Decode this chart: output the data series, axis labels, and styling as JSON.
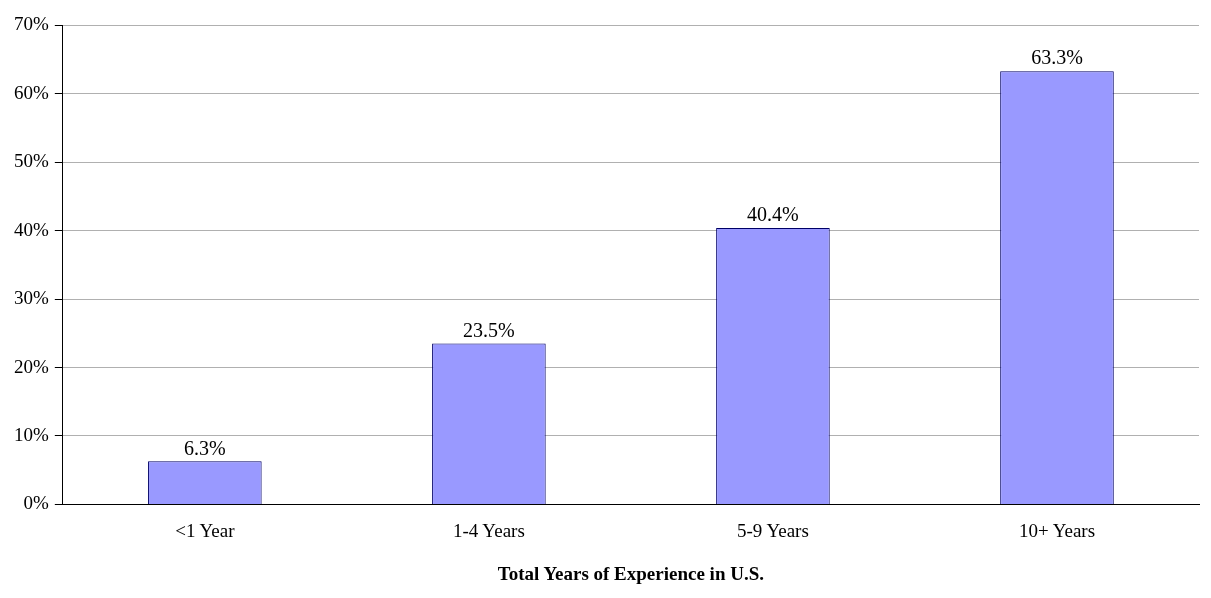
{
  "chart_data": {
    "type": "bar",
    "xlabel": "Total Years of Experience in U.S.",
    "categories": [
      "<1 Year",
      "1-4 Years",
      "5-9 Years",
      "10+ Years"
    ],
    "values": [
      6.3,
      23.5,
      40.4,
      63.3
    ],
    "value_labels": [
      "6.3%",
      "23.5%",
      "40.4%",
      "63.3%"
    ],
    "color": "#9999ff",
    "ylim": [
      0,
      70
    ],
    "yticks": [
      {
        "value": 0,
        "label": "0%"
      },
      {
        "value": 10,
        "label": "10%"
      },
      {
        "value": 20,
        "label": "20%"
      },
      {
        "value": 30,
        "label": "30%"
      },
      {
        "value": 40,
        "label": "40%"
      },
      {
        "value": 50,
        "label": "50%"
      },
      {
        "value": 60,
        "label": "60%"
      },
      {
        "value": 70,
        "label": "70%"
      }
    ],
    "grid": "y",
    "legend": false
  }
}
